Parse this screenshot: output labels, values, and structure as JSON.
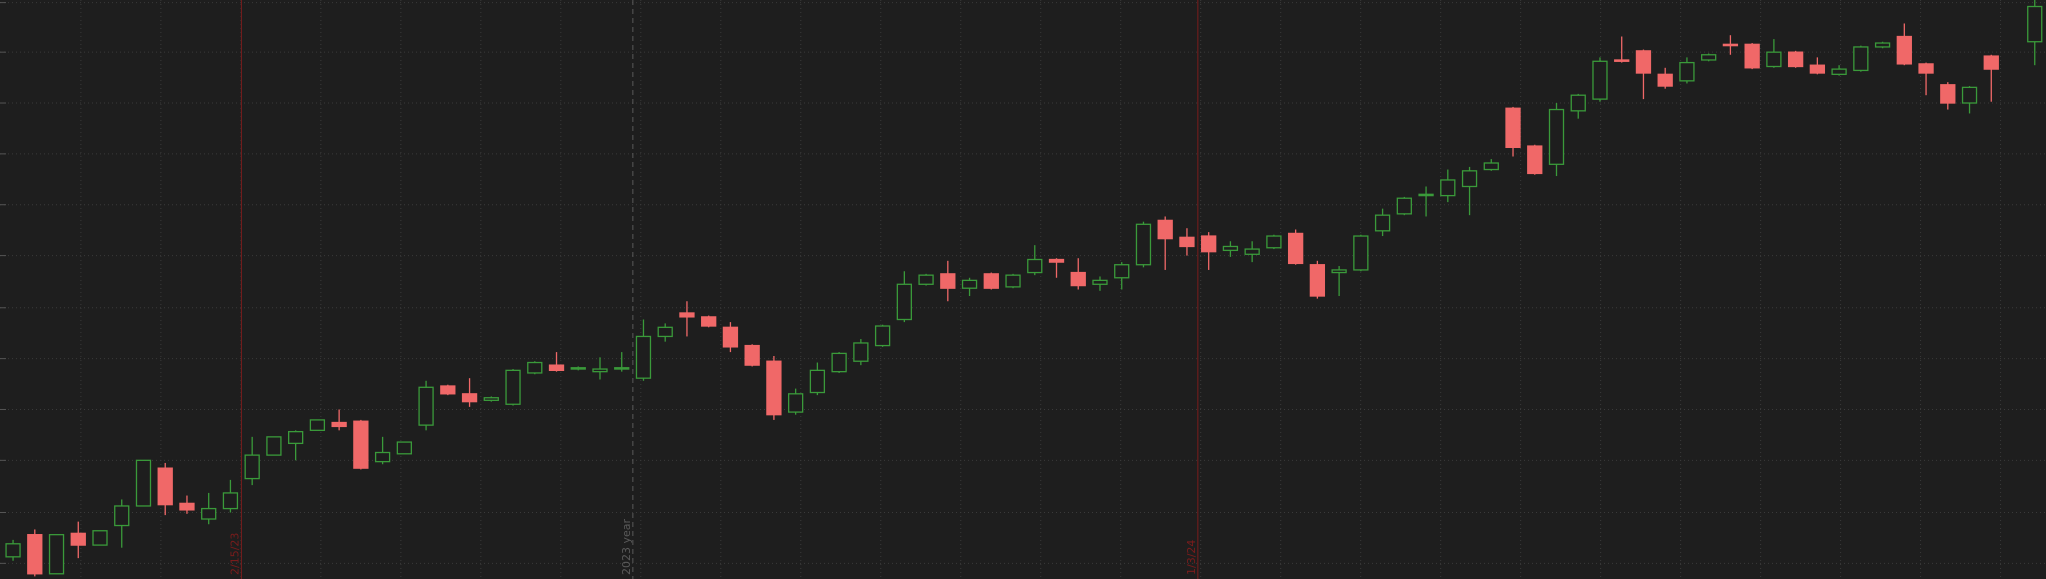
{
  "chart_data": {
    "type": "candlestick",
    "categories": [
      null,
      null,
      null,
      null,
      null,
      null,
      null,
      null,
      null,
      null,
      null,
      null,
      null,
      null,
      null,
      null,
      null,
      null,
      null,
      null,
      null,
      null,
      null,
      null,
      null,
      null,
      null,
      null,
      null,
      null,
      null,
      null,
      null,
      null,
      null,
      null,
      null,
      null,
      null,
      null,
      null,
      null,
      null,
      null,
      null,
      null,
      null,
      null,
      null,
      null,
      null,
      null,
      null,
      null,
      null,
      null,
      null,
      null,
      null,
      null,
      null,
      null,
      null,
      null,
      null,
      null,
      null,
      null,
      null,
      null,
      null,
      null,
      null,
      null,
      null,
      null,
      null,
      null,
      null,
      null,
      null,
      null,
      null,
      null,
      null,
      null,
      null,
      null,
      null,
      null,
      null,
      null,
      null,
      null
    ],
    "open": [
      17,
      34,
      4,
      35,
      26,
      41,
      56,
      85,
      58,
      46,
      54,
      77,
      95,
      104,
      114,
      120,
      121,
      90,
      96,
      118,
      148,
      142,
      137,
      134,
      158,
      164,
      161,
      159,
      161,
      154,
      186,
      204,
      201,
      193,
      179,
      167,
      128,
      143,
      159,
      167,
      179,
      199,
      226,
      234,
      223,
      234,
      224,
      235,
      245,
      235,
      226,
      231,
      241,
      275,
      262,
      263,
      252,
      249,
      254,
      265,
      241,
      235,
      237,
      267,
      280,
      294,
      294,
      301,
      314,
      361,
      332,
      318,
      359,
      368,
      398,
      405,
      387,
      382,
      398,
      410,
      410,
      393,
      404,
      394,
      387,
      390,
      408,
      416,
      395,
      379,
      365,
      401,
      null,
      412
    ],
    "high": [
      30,
      38,
      34,
      44,
      37,
      61,
      91,
      89,
      64,
      66,
      76,
      109,
      109,
      114,
      122,
      130,
      122,
      109,
      105,
      152,
      149,
      154,
      140,
      161,
      167,
      174,
      163,
      170,
      174,
      199,
      196,
      213,
      202,
      197,
      180,
      171,
      146,
      166,
      174,
      184,
      195,
      236,
      234,
      244,
      231,
      235,
      234,
      256,
      246,
      246,
      232,
      243,
      274,
      278,
      269,
      266,
      259,
      259,
      264,
      268,
      244,
      240,
      264,
      284,
      293,
      301,
      314,
      316,
      322,
      362,
      333,
      365,
      372,
      400,
      416,
      406,
      392,
      400,
      403,
      417,
      411,
      414,
      405,
      400,
      394,
      409,
      412,
      426,
      396,
      381,
      378,
      402,
      null,
      444
    ],
    "low": [
      14,
      2,
      4,
      16,
      26,
      24,
      56,
      49,
      50,
      42,
      51,
      72,
      95,
      91,
      114,
      114,
      84,
      88,
      96,
      114,
      141,
      132,
      136,
      133,
      157,
      159,
      160,
      153,
      159,
      152,
      182,
      186,
      193,
      174,
      163,
      122,
      126,
      141,
      158,
      164,
      178,
      197,
      225,
      213,
      217,
      222,
      223,
      233,
      231,
      222,
      221,
      222,
      239,
      237,
      248,
      237,
      247,
      243,
      253,
      241,
      215,
      217,
      236,
      263,
      279,
      278,
      289,
      279,
      313,
      324,
      310,
      309,
      353,
      366,
      396,
      368,
      376,
      380,
      397,
      402,
      391,
      392,
      392,
      387,
      386,
      389,
      407,
      394,
      371,
      360,
      357,
      366,
      null,
      394
    ],
    "close": [
      27,
      4,
      34,
      26,
      37,
      56,
      91,
      57,
      53,
      54,
      66,
      95,
      109,
      113,
      122,
      117,
      85,
      97,
      105,
      147,
      142,
      136,
      139,
      160,
      166,
      160,
      162,
      161,
      162,
      186,
      193,
      201,
      194,
      178,
      164,
      126,
      142,
      160,
      173,
      181,
      194,
      226,
      233,
      223,
      229,
      223,
      233,
      245,
      243,
      225,
      229,
      241,
      272,
      261,
      255,
      251,
      255,
      253,
      263,
      242,
      217,
      237,
      263,
      279,
      292,
      295,
      306,
      313,
      319,
      331,
      311,
      360,
      371,
      397,
      397,
      388,
      378,
      396,
      402,
      409,
      392,
      404,
      393,
      388,
      391,
      408,
      411,
      395,
      388,
      365,
      377,
      391,
      null,
      439
    ],
    "up_color": "#3a9a3a",
    "down_color": "#f06868",
    "ylim": [
      0,
      444
    ],
    "yticks": [
      442,
      404,
      365,
      326,
      287,
      248,
      208,
      169,
      130,
      91,
      51,
      12
    ],
    "grid": true,
    "markers": [
      {
        "label": "2/15/23",
        "color": "#7a1c1c",
        "style": "solid"
      },
      {
        "label": "2023 year",
        "color": "#5a5a5a",
        "style": "dashed"
      },
      {
        "label": "1/3/24",
        "color": "#7a1c1c",
        "style": "solid"
      }
    ]
  }
}
